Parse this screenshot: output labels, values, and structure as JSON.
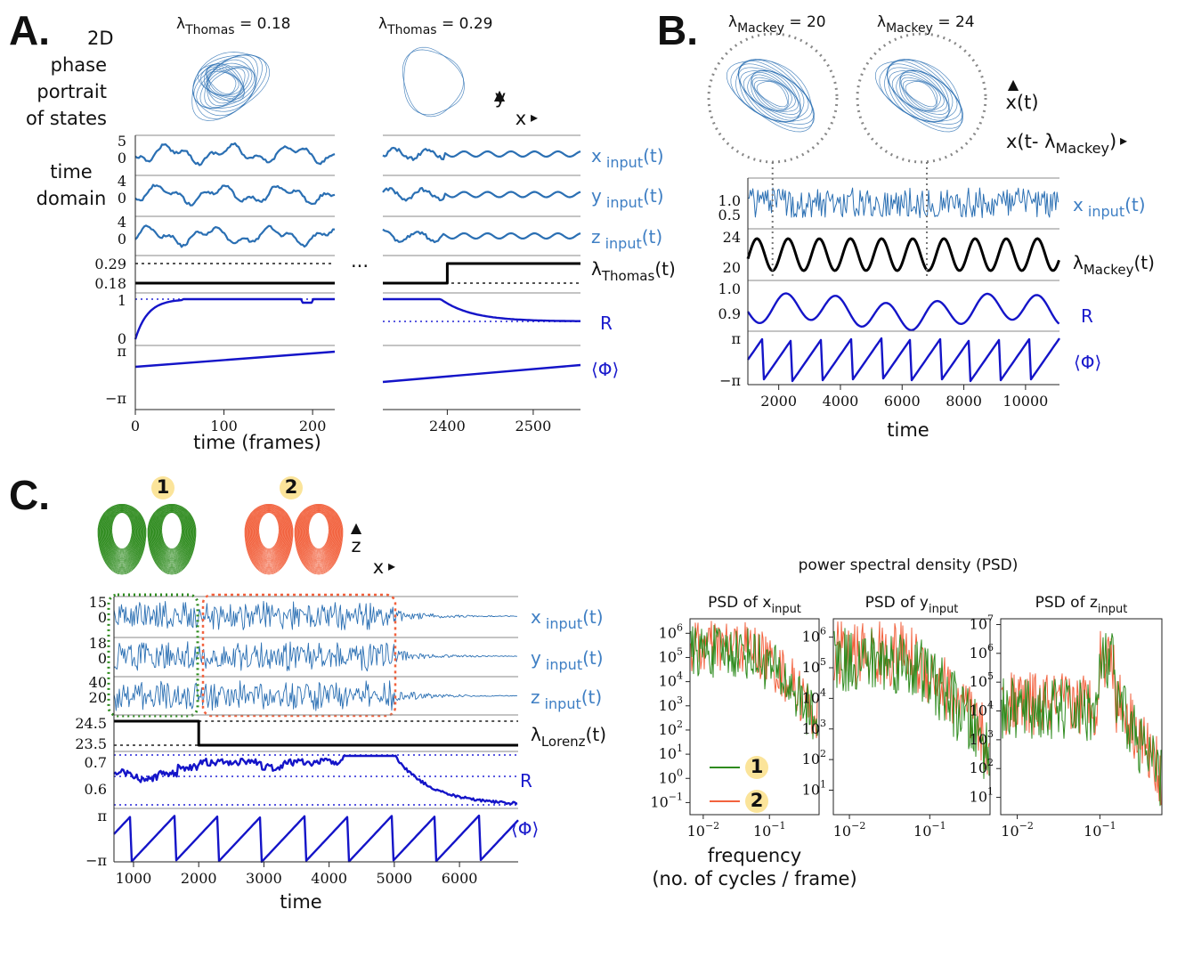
{
  "colors": {
    "series": "#2a6fb3",
    "lambda": "#000000",
    "R": "#1414c8",
    "phase": "#1414c8",
    "ref": "#5a5ae0",
    "green": "#2e8b1e",
    "orange": "#f2623e",
    "badge": "#fbe49a"
  },
  "chart_data": [
    {
      "id": "A",
      "type": "line",
      "panel_label": "A.",
      "phase_caption": [
        "2D",
        "phase",
        "portrait",
        "of states"
      ],
      "time_caption": [
        "time",
        "domain"
      ],
      "attractor_titles": [
        {
          "sym": "λ",
          "sub": "Thomas",
          "value": "= 0.18"
        },
        {
          "sym": "λ",
          "sub": "Thomas",
          "value": "= 0.29"
        }
      ],
      "phase_axes": {
        "y": "y",
        "x": "x"
      },
      "ellipsis": "...",
      "series_labels": [
        "x",
        "y",
        "z"
      ],
      "series_sub": "input",
      "series_suffix": "(t)",
      "lambda_label": {
        "sym": "λ",
        "sub": "Thomas",
        "suffix": "(t)"
      },
      "R_label": "R",
      "phase_label": "⟨Φ⟩",
      "yticks": {
        "x": [
          "5",
          "0"
        ],
        "y": [
          "4",
          "0"
        ],
        "z": [
          "4",
          "0"
        ],
        "lambda": [
          "0.29",
          "0.18"
        ],
        "R": [
          "1",
          "0"
        ],
        "phase": [
          "π",
          "−π"
        ]
      },
      "lambda_values": [
        0.18,
        0.29
      ],
      "lambda_step_at": 2400,
      "xticks_left": [
        "0",
        "100",
        "200"
      ],
      "xrange_left": [
        0,
        225
      ],
      "xticks_right": [
        "2400",
        "2500"
      ],
      "xrange_right": [
        2325,
        2555
      ],
      "xlabel": "time (frames)"
    },
    {
      "id": "B",
      "type": "line",
      "panel_label": "B.",
      "attractor_titles": [
        {
          "sym": "λ",
          "sub": "Mackey",
          "value": "= 20"
        },
        {
          "sym": "λ",
          "sub": "Mackey",
          "value": "= 24"
        }
      ],
      "phase_axes": {
        "y": "x(t)",
        "x_pre": "x(t- ",
        "x_sub": "Mackey",
        "x_post": ")"
      },
      "series_label": "x",
      "series_sub": "input",
      "series_suffix": "(t)",
      "lambda_label": {
        "sym": "λ",
        "sub": "Mackey",
        "suffix": "(t)"
      },
      "R_label": "R",
      "phase_label": "⟨Φ⟩",
      "yticks": {
        "x": [
          "1.0",
          "0.5"
        ],
        "lambda": [
          "24",
          "20"
        ],
        "R": [
          "1.0",
          "0.9"
        ],
        "phase": [
          "π",
          "−π"
        ]
      },
      "lambda_range": [
        20,
        24
      ],
      "xticks": [
        "2000",
        "4000",
        "6000",
        "8000",
        "10000"
      ],
      "xrange": [
        1000,
        11100
      ],
      "marker_times": [
        1800,
        6800
      ],
      "xlabel": "time"
    },
    {
      "id": "C",
      "type": "line",
      "panel_label": "C.",
      "badges": [
        "1",
        "2"
      ],
      "phase_axes": {
        "y": "z",
        "x": "x"
      },
      "series_labels": [
        "x",
        "y",
        "z"
      ],
      "series_sub": "input",
      "series_suffix": "(t)",
      "lambda_label": {
        "sym": "λ",
        "sub": "Lorenz",
        "suffix": "(t)"
      },
      "R_label": "R",
      "phase_label": "⟨Φ⟩",
      "yticks": {
        "x": [
          "15",
          "0"
        ],
        "y": [
          "18",
          "0"
        ],
        "z": [
          "40",
          "20"
        ],
        "lambda": [
          "24.5",
          "23.5"
        ],
        "R": [
          "0.7",
          "0.6"
        ],
        "phase": [
          "π",
          "−π"
        ]
      },
      "lambda_values": [
        24.5,
        23.5
      ],
      "lambda_step_at": 2000,
      "signal_end": 5000,
      "xticks": [
        "1000",
        "2000",
        "3000",
        "4000",
        "5000",
        "6000"
      ],
      "xrange": [
        700,
        6900
      ],
      "xlabel": "time"
    },
    {
      "id": "PSD",
      "type": "line",
      "title": "power spectral density (PSD)",
      "subplots": [
        {
          "title": "PSD of x",
          "sub": "input",
          "yticks": [
            "10^6",
            "10^5",
            "10^4",
            "10^3",
            "10^2",
            "10^1",
            "10^0",
            "10^-1"
          ],
          "ylog": [
            -1.5,
            6.6
          ]
        },
        {
          "title": "PSD of y",
          "sub": "input",
          "yticks": [
            "10^6",
            "10^5",
            "10^4",
            "10^3",
            "10^2",
            "10^1"
          ],
          "ylog": [
            0.2,
            6.6
          ]
        },
        {
          "title": "PSD of z",
          "sub": "input",
          "yticks": [
            "10^7",
            "10^6",
            "10^5",
            "10^4",
            "10^3",
            "10^2",
            "10^1"
          ],
          "ylog": [
            0.4,
            7.2
          ]
        }
      ],
      "xticks": [
        "10^-2",
        "10^-1"
      ],
      "xlog": [
        -2.2,
        -0.25
      ],
      "xlabel": "frequency",
      "xlabel2": "(no. of cycles / frame)",
      "legend": [
        "1",
        "2"
      ]
    }
  ]
}
